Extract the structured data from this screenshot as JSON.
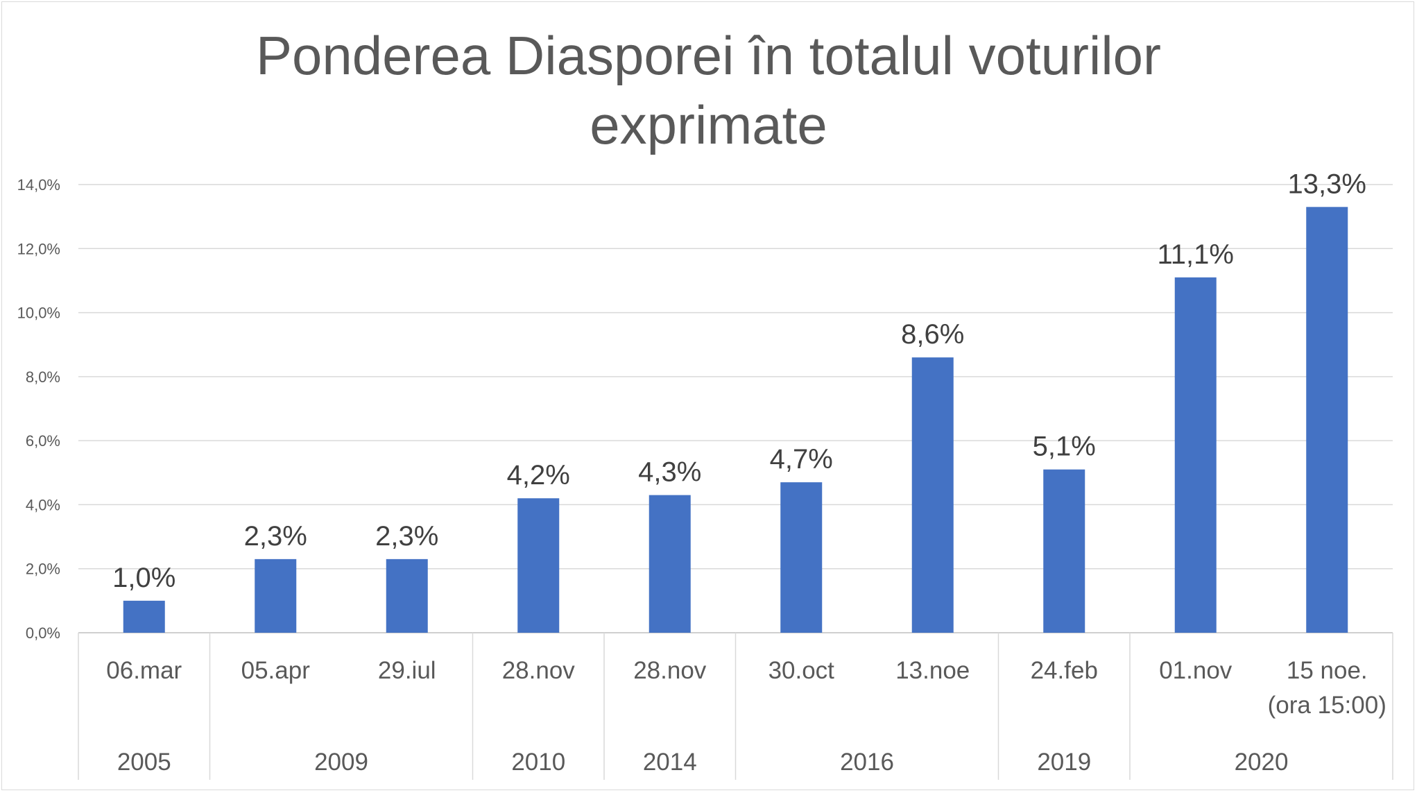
{
  "chart_data": {
    "type": "bar",
    "title": "Ponderea Diasporei în totalul voturilor exprimate",
    "title_lines": [
      "Ponderea Diasporei în totalul voturilor",
      "exprimate"
    ],
    "categories": [
      "06.mar",
      "05.apr",
      "29.iul",
      "28.nov",
      "28.nov",
      "30.oct",
      "13.noe",
      "24.feb",
      "01.nov",
      "15 noe. (ora 15:00)"
    ],
    "category_lines": [
      [
        "06.mar"
      ],
      [
        "05.apr"
      ],
      [
        "29.iul"
      ],
      [
        "28.nov"
      ],
      [
        "28.nov"
      ],
      [
        "30.oct"
      ],
      [
        "13.noe"
      ],
      [
        "24.feb"
      ],
      [
        "01.nov"
      ],
      [
        "15 noe.",
        "(ora 15:00)"
      ]
    ],
    "values": [
      1.0,
      2.3,
      2.3,
      4.2,
      4.3,
      4.7,
      8.6,
      5.1,
      11.1,
      13.3
    ],
    "data_labels": [
      "1,0%",
      "2,3%",
      "2,3%",
      "4,2%",
      "4,3%",
      "4,7%",
      "8,6%",
      "5,1%",
      "11,1%",
      "13,3%"
    ],
    "groups": [
      {
        "label": "2005",
        "count": 1
      },
      {
        "label": "2009",
        "count": 2
      },
      {
        "label": "2010",
        "count": 1
      },
      {
        "label": "2014",
        "count": 1
      },
      {
        "label": "2016",
        "count": 2
      },
      {
        "label": "2019",
        "count": 1
      },
      {
        "label": "2020",
        "count": 2
      }
    ],
    "yticks": [
      0,
      2,
      4,
      6,
      8,
      10,
      12,
      14
    ],
    "ytick_labels": [
      "0,0%",
      "2,0%",
      "4,0%",
      "6,0%",
      "8,0%",
      "10,0%",
      "12,0%",
      "14,0%"
    ],
    "ylim": [
      0,
      14
    ],
    "xlabel": "",
    "ylabel": "",
    "grid": true,
    "legend": "none",
    "bar_color": "#4472c4"
  }
}
